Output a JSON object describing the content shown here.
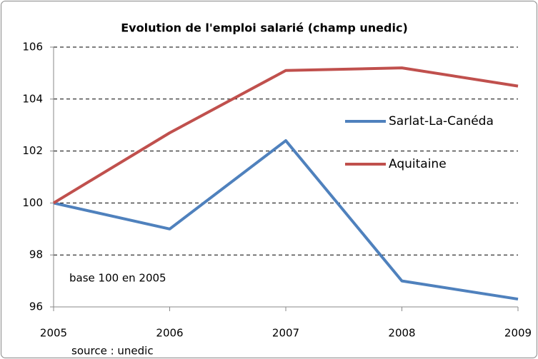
{
  "chart_data": {
    "type": "line",
    "title": "Evolution de l'emploi salarié  (champ unedic)",
    "annotations": [
      "base 100 en 2005",
      "source : unedic"
    ],
    "x": [
      2005,
      2006,
      2007,
      2008,
      2009
    ],
    "series": [
      {
        "name": "Sarlat-La-Canéda",
        "color": "#4f81bd",
        "values": [
          100,
          99.0,
          102.4,
          97.0,
          96.3
        ]
      },
      {
        "name": "Aquitaine",
        "color": "#c0504d",
        "values": [
          100,
          102.7,
          105.1,
          105.2,
          104.5
        ]
      }
    ],
    "xlim": [
      2005,
      2009
    ],
    "xticks": [
      2005,
      2006,
      2007,
      2008,
      2009
    ],
    "ylim": [
      96,
      106
    ],
    "yticks": [
      96,
      98,
      100,
      102,
      104,
      106
    ],
    "grid": true
  }
}
